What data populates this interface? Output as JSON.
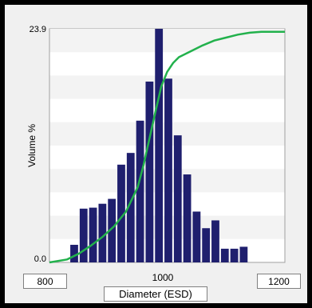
{
  "chart_data": {
    "type": "bar",
    "title": "",
    "xlabel": "Diameter (ESD)",
    "ylabel": "Volume %",
    "xlim": [
      800,
      1200
    ],
    "ylim": [
      0.0,
      23.9
    ],
    "ytick_labels": [
      "23.9",
      "0.0"
    ],
    "x_min_label": "800",
    "x_mid_label": "1000",
    "x_max_label": "1200",
    "bar_color": "#1f1f6e",
    "line_color": "#22b14c",
    "bars": [
      {
        "x": 842,
        "value": 1.8
      },
      {
        "x": 858,
        "value": 5.5
      },
      {
        "x": 874,
        "value": 5.6
      },
      {
        "x": 890,
        "value": 6.0
      },
      {
        "x": 906,
        "value": 6.5
      },
      {
        "x": 922,
        "value": 10.0
      },
      {
        "x": 938,
        "value": 11.2
      },
      {
        "x": 954,
        "value": 14.5
      },
      {
        "x": 970,
        "value": 18.5
      },
      {
        "x": 986,
        "value": 23.9
      },
      {
        "x": 1002,
        "value": 18.8
      },
      {
        "x": 1018,
        "value": 13.0
      },
      {
        "x": 1034,
        "value": 9.0
      },
      {
        "x": 1050,
        "value": 5.2
      },
      {
        "x": 1066,
        "value": 3.5
      },
      {
        "x": 1082,
        "value": 4.3
      },
      {
        "x": 1098,
        "value": 1.4
      },
      {
        "x": 1114,
        "value": 1.4
      },
      {
        "x": 1130,
        "value": 1.6
      }
    ],
    "cumulative_series": {
      "x": [
        800,
        830,
        850,
        870,
        890,
        910,
        930,
        950,
        960,
        970,
        980,
        990,
        1000,
        1010,
        1020,
        1040,
        1060,
        1080,
        1100,
        1120,
        1140,
        1160,
        1200
      ],
      "values": [
        0.0,
        0.3,
        0.9,
        1.7,
        2.6,
        3.7,
        5.2,
        7.7,
        10.0,
        12.7,
        15.4,
        18.0,
        19.5,
        20.4,
        21.0,
        21.6,
        22.2,
        22.7,
        23.0,
        23.3,
        23.5,
        23.6,
        23.6
      ]
    }
  }
}
